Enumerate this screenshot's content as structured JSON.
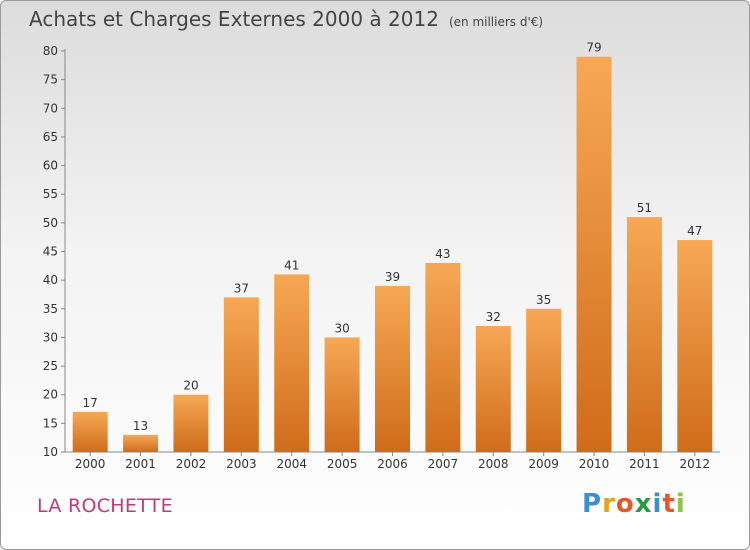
{
  "header": {
    "title": "Achats et Charges Externes 2000 à 2012",
    "subtitle": "(en milliers d'€)"
  },
  "footer": {
    "place": "LA ROCHETTE",
    "logo_letters": [
      "P",
      "r",
      "o",
      "x",
      "i",
      "t",
      "i"
    ],
    "logo_colors": [
      "#3a8fd0",
      "#e8a21a",
      "#e35a2a",
      "#2a9b3e",
      "#3a8fd0",
      "#e35a2a",
      "#8cc63f"
    ]
  },
  "chart_data": {
    "type": "bar",
    "title": "Achats et Charges Externes 2000 à 2012",
    "categories": [
      "2000",
      "2001",
      "2002",
      "2003",
      "2004",
      "2005",
      "2006",
      "2007",
      "2008",
      "2009",
      "2010",
      "2011",
      "2012"
    ],
    "values": [
      17,
      13,
      20,
      37,
      41,
      30,
      39,
      43,
      32,
      35,
      79,
      51,
      47
    ],
    "ylim": [
      10,
      80
    ],
    "yticks": [
      10,
      15,
      20,
      25,
      30,
      35,
      40,
      45,
      50,
      55,
      60,
      65,
      70,
      75,
      80
    ],
    "grid": false,
    "bar_color_top": "#f7a854",
    "bar_color_bottom": "#cf6c1a"
  }
}
